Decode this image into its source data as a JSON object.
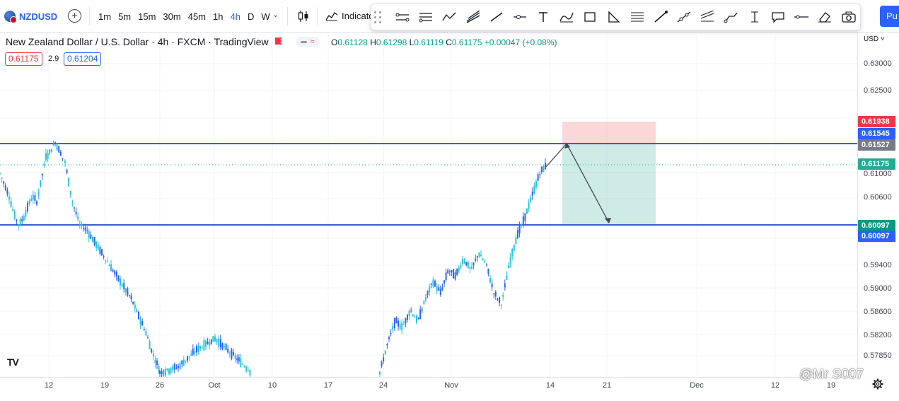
{
  "toolbar": {
    "symbol": "NZDUSD",
    "add_symbol": "+",
    "intervals": [
      "1m",
      "5m",
      "15m",
      "30m",
      "45m",
      "1h",
      "4h",
      "D",
      "W"
    ],
    "active_interval": "4h",
    "indicators_label": "Indicato",
    "publish_label": "Pu",
    "drawing_tools": [
      "cursor-grip",
      "parallel-channel-icon",
      "disjoint-channel-icon",
      "zigzag-icon",
      "pitchfork-icon",
      "trend-line-icon",
      "horizontal-ray-icon",
      "text-icon",
      "brush-icon",
      "rectangle-icon",
      "triangle-icon",
      "fib-retracement-icon",
      "arrow-icon",
      "extended-line-icon",
      "regression-trend-icon",
      "path-icon",
      "price-range-icon",
      "callout-icon",
      "horizontal-line-icon",
      "eraser-icon",
      "camera-icon"
    ]
  },
  "legend": {
    "title": "New Zealand Dollar / U.S. Dollar · 4h · FXCM · TradingView",
    "o_label": "O",
    "o": "0.61128",
    "h_label": "H",
    "h": "0.61298",
    "l_label": "L",
    "l": "0.61119",
    "c_label": "C",
    "c": "0.61175",
    "change": "+0.00047 (+0.08%)",
    "bid": "0.61175",
    "spread": "2.9",
    "ask": "0.61204"
  },
  "price_axis": {
    "currency": "USD",
    "ticks": [
      "0.63000",
      "0.62500",
      "0.61000",
      "0.60600",
      "0.59400",
      "0.59000",
      "0.58600",
      "0.58200",
      "0.57850"
    ],
    "labels": [
      {
        "text": "0.61938",
        "color": "#f23645"
      },
      {
        "text": "0.61545",
        "color": "#2962ff"
      },
      {
        "text": "0.61527",
        "color": "#787b86"
      },
      {
        "text": "0.61175",
        "color": "#22ab94"
      },
      {
        "text": "0.60097",
        "color": "#089981"
      },
      {
        "text": "0.60097",
        "color": "#2962ff"
      }
    ]
  },
  "time_axis": {
    "ticks": [
      "12",
      "19",
      "26",
      "Oct",
      "10",
      "17",
      "24",
      "Nov",
      "14",
      "21",
      "Dec",
      "12",
      "19"
    ]
  },
  "branding": {
    "tv_logo": "TV",
    "watermark": "@Mr S007"
  },
  "chart_data": {
    "type": "candlestick",
    "symbol": "NZDUSD",
    "timeframe": "4h",
    "last_close": 0.61175,
    "horizontal_levels": [
      0.61527,
      0.60097
    ],
    "short_position": {
      "entry": 0.61527,
      "stop_loss": 0.61938,
      "take_profit": 0.60097
    },
    "projection_path": [
      0.61175,
      0.61527,
      0.60097
    ],
    "price_path": [
      0.61,
      0.608,
      0.606,
      0.603,
      0.601,
      0.602,
      0.604,
      0.606,
      0.605,
      0.609,
      0.613,
      0.614,
      0.6155,
      0.614,
      0.612,
      0.605,
      0.601,
      0.6,
      0.598,
      0.596,
      0.594,
      0.592,
      0.59,
      0.588,
      0.585,
      0.582,
      0.578,
      0.575,
      0.576,
      0.579,
      0.581,
      0.578,
      0.575,
      0.58,
      0.584,
      0.583,
      0.586,
      0.584,
      0.588,
      0.591,
      0.589,
      0.593,
      0.592,
      0.595,
      0.593,
      0.596,
      0.594,
      0.589,
      0.587,
      0.594,
      0.599,
      0.602,
      0.606,
      0.61,
      0.61175
    ]
  }
}
